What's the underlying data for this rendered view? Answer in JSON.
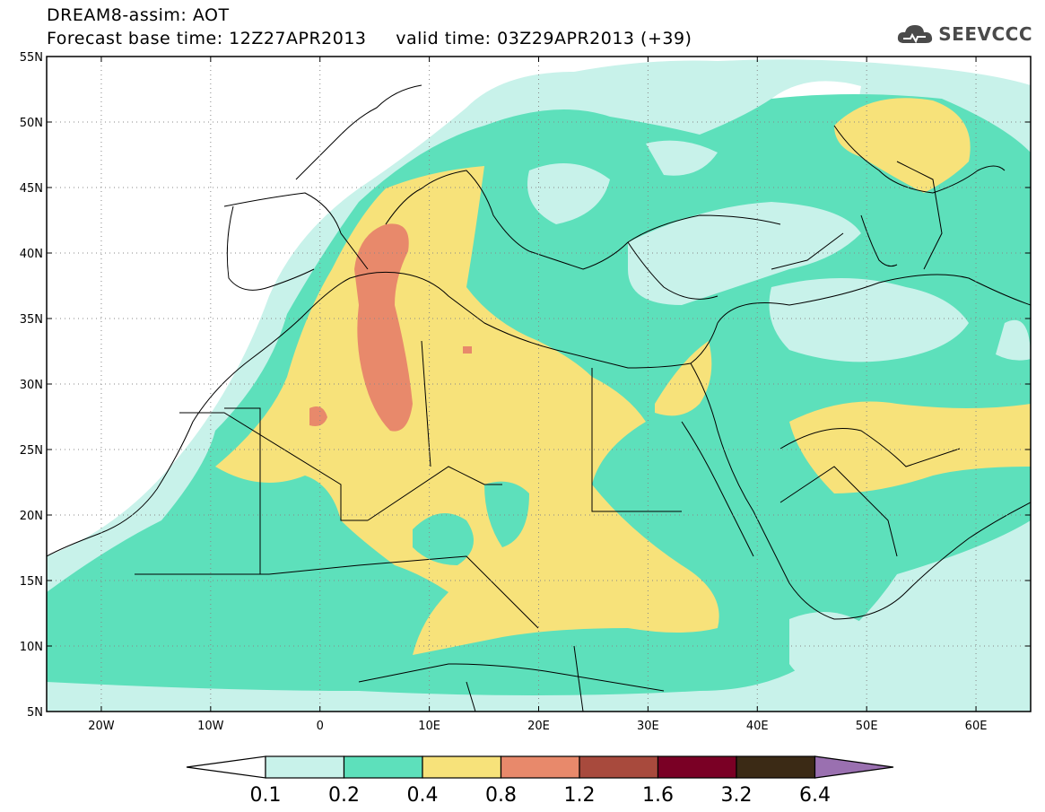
{
  "title": {
    "line1": "DREAM8-assim: AOT",
    "line2": "Forecast base time: 12Z27APR2013     valid time: 03Z29APR2013 (+39)"
  },
  "brand": {
    "name": "SEEVCCC",
    "icon": "cloud-logo-icon",
    "color": "#4a4a4a"
  },
  "map": {
    "lat_labels": [
      "55N",
      "50N",
      "45N",
      "40N",
      "35N",
      "30N",
      "25N",
      "20N",
      "15N",
      "10N",
      "5N"
    ],
    "lon_labels": [
      "20W",
      "10W",
      "0",
      "10E",
      "20E",
      "30E",
      "40E",
      "50E",
      "60E"
    ],
    "extent": {
      "lon": [
        -25,
        65
      ],
      "lat": [
        5,
        55
      ]
    },
    "grid": "dotted",
    "colors": {
      "0.1-0.2": "#c8f2ea",
      "0.2-0.4": "#5de0bb",
      "0.4-0.8": "#f7e27a",
      "0.8-1.2": "#e8896b"
    }
  },
  "colorbar": {
    "labels": [
      "0.1",
      "0.2",
      "0.4",
      "0.8",
      "1.2",
      "1.6",
      "3.2",
      "6.4"
    ],
    "colors": [
      "#ffffff",
      "#c8f2ea",
      "#5de0bb",
      "#f7e27a",
      "#e8896b",
      "#a84a3d",
      "#7a0025",
      "#3b2a15",
      "#9a70b0"
    ]
  }
}
